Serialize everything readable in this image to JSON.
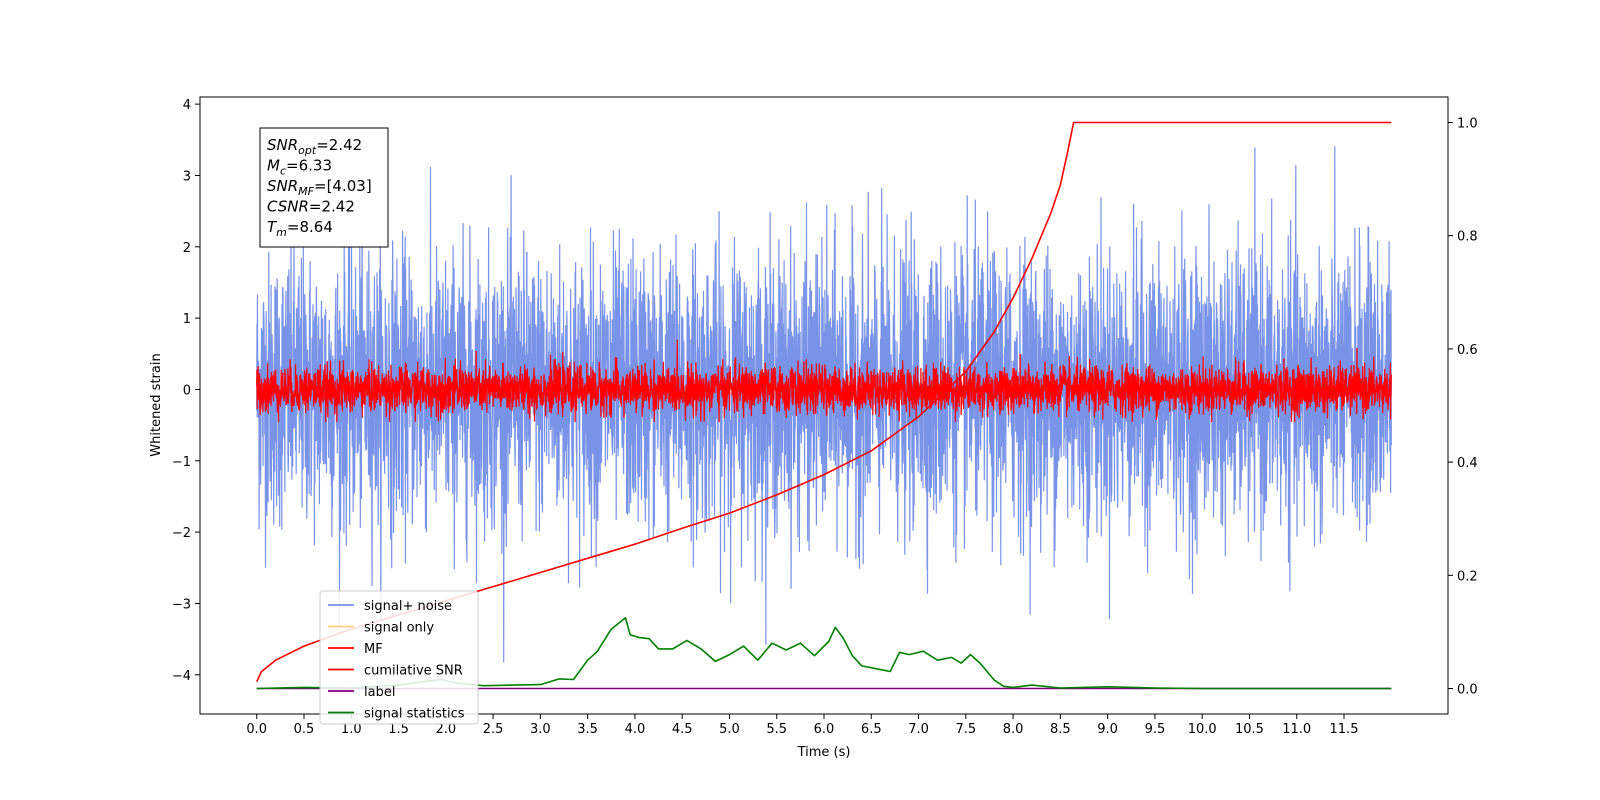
{
  "chart_data": {
    "type": "line",
    "title": "",
    "xlabel": "Time (s)",
    "ylabel": "Whitened strain",
    "y2label": "",
    "xlim": [
      -0.6,
      12.6
    ],
    "ylim": [
      -4.55,
      4.1
    ],
    "y2lim": [
      -0.045,
      1.045
    ],
    "xticks": [
      0.0,
      0.5,
      1.0,
      1.5,
      2.0,
      2.5,
      3.0,
      3.5,
      4.0,
      4.5,
      5.0,
      5.5,
      6.0,
      6.5,
      7.0,
      7.5,
      8.0,
      8.5,
      9.0,
      9.5,
      10.0,
      10.5,
      11.0,
      11.5
    ],
    "xtick_labels": [
      "0.0",
      "0.5",
      "1.0",
      "1.5",
      "2.0",
      "2.5",
      "3.0",
      "3.5",
      "4.0",
      "4.5",
      "5.0",
      "5.5",
      "6.0",
      "6.5",
      "7.0",
      "7.5",
      "8.0",
      "8.5",
      "9.0",
      "9.5",
      "10.0",
      "10.5",
      "11.0",
      "11.5"
    ],
    "yticks": [
      -4,
      -3,
      -2,
      -1,
      0,
      1,
      2,
      3,
      4
    ],
    "ytick_labels": [
      "−4",
      "−3",
      "−2",
      "−1",
      "0",
      "1",
      "2",
      "3",
      "4"
    ],
    "y2ticks": [
      0.0,
      0.2,
      0.4,
      0.6,
      0.8,
      1.0
    ],
    "y2tick_labels": [
      "0.0",
      "0.2",
      "0.4",
      "0.6",
      "0.8",
      "1.0"
    ],
    "grid": false,
    "legend_position": "lower-left",
    "annotation": {
      "lines": [
        {
          "symbol": "SNR",
          "sub": "opt",
          "value": "=2.42"
        },
        {
          "symbol": "M",
          "sub": "c",
          "value": "=6.33"
        },
        {
          "symbol": "SNR",
          "sub": "MF",
          "value": "=[4.03]"
        },
        {
          "symbol": "CSNR",
          "sub": "",
          "value": "=2.42"
        },
        {
          "symbol": "T",
          "sub": "m",
          "value": "=8.64"
        }
      ]
    },
    "series": [
      {
        "name": "signal+ noise",
        "color": "#7893e8",
        "axis": "left",
        "kind": "noise",
        "t_range": [
          0.0,
          12.0
        ],
        "mean": 0.0,
        "std": 1.0,
        "min": -4.1,
        "max": 3.7
      },
      {
        "name": "signal only",
        "color": "#ffcc80",
        "axis": "left",
        "kind": "hidden"
      },
      {
        "name": "MF",
        "color": "#ff0000",
        "axis": "left",
        "kind": "noise",
        "t_range": [
          0.0,
          12.0
        ],
        "mean": 0.0,
        "std": 0.17,
        "min": -0.45,
        "max": 1.0
      },
      {
        "name": "cumilative SNR",
        "color": "#ff0000",
        "axis": "right",
        "kind": "line",
        "x": [
          0.0,
          0.05,
          0.2,
          0.5,
          1.0,
          1.5,
          2.0,
          2.5,
          3.0,
          3.5,
          4.0,
          4.5,
          5.0,
          5.5,
          6.0,
          6.5,
          7.0,
          7.5,
          7.8,
          8.0,
          8.2,
          8.4,
          8.5,
          8.58,
          8.64,
          12.0
        ],
        "y": [
          0.012,
          0.03,
          0.05,
          0.075,
          0.105,
          0.13,
          0.155,
          0.18,
          0.205,
          0.23,
          0.255,
          0.283,
          0.31,
          0.342,
          0.378,
          0.42,
          0.48,
          0.56,
          0.63,
          0.69,
          0.76,
          0.84,
          0.89,
          0.95,
          1.0,
          1.0
        ]
      },
      {
        "name": "label",
        "color": "#800080",
        "axis": "right",
        "kind": "line",
        "x": [
          0.0,
          12.0
        ],
        "y": [
          0.0,
          0.0
        ]
      },
      {
        "name": "signal statistics",
        "color": "#008000",
        "axis": "right",
        "kind": "line",
        "x": [
          0.0,
          0.5,
          1.0,
          1.5,
          1.8,
          1.95,
          2.1,
          2.4,
          2.7,
          3.0,
          3.2,
          3.35,
          3.5,
          3.6,
          3.75,
          3.9,
          3.95,
          4.05,
          4.15,
          4.25,
          4.4,
          4.55,
          4.7,
          4.85,
          5.0,
          5.15,
          5.3,
          5.45,
          5.6,
          5.75,
          5.9,
          6.05,
          6.12,
          6.2,
          6.3,
          6.4,
          6.55,
          6.7,
          6.8,
          6.9,
          7.05,
          7.2,
          7.35,
          7.45,
          7.55,
          7.65,
          7.8,
          7.9,
          8.0,
          8.2,
          8.5,
          9.0,
          9.5,
          10.0,
          11.0,
          12.0
        ],
        "y": [
          0.0,
          0.002,
          0.001,
          0.006,
          0.013,
          0.016,
          0.01,
          0.005,
          0.006,
          0.007,
          0.017,
          0.016,
          0.05,
          0.065,
          0.105,
          0.125,
          0.095,
          0.09,
          0.088,
          0.07,
          0.07,
          0.085,
          0.07,
          0.048,
          0.06,
          0.075,
          0.05,
          0.08,
          0.068,
          0.08,
          0.058,
          0.083,
          0.108,
          0.09,
          0.058,
          0.04,
          0.035,
          0.03,
          0.064,
          0.06,
          0.066,
          0.05,
          0.055,
          0.045,
          0.06,
          0.045,
          0.015,
          0.004,
          0.002,
          0.006,
          0.001,
          0.003,
          0.001,
          0.0,
          0.0,
          0.0
        ]
      }
    ]
  }
}
